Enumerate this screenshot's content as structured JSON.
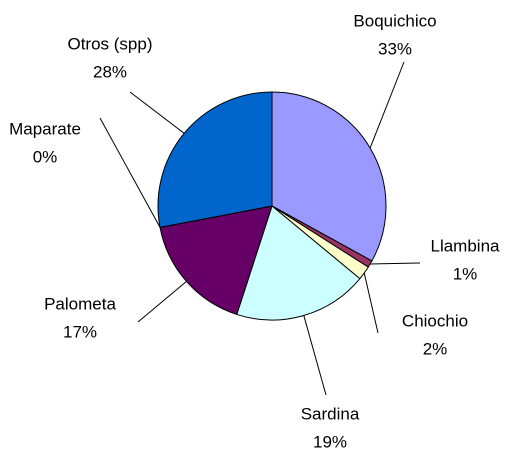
{
  "chart_data": {
    "type": "pie",
    "categories": [
      "Boquichico",
      "Llambina",
      "Chiochio",
      "Sardina",
      "Palometa",
      "Maparate",
      "Otros (spp)"
    ],
    "values": [
      33,
      1,
      2,
      19,
      17,
      0,
      28
    ],
    "value_labels": [
      "33%",
      "1%",
      "2%",
      "19%",
      "17%",
      "0%",
      "28%"
    ],
    "colors": [
      "#9999ff",
      "#993366",
      "#ffffcc",
      "#ccffff",
      "#660066",
      "#ffffff",
      "#0066cc"
    ]
  }
}
